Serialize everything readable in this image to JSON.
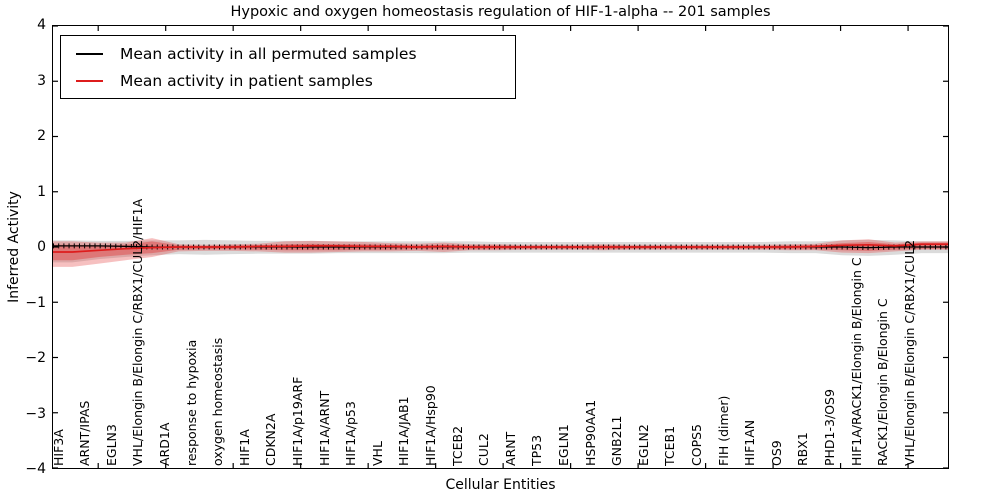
{
  "figure": {
    "title": "Hypoxic and oxygen homeostasis regulation of HIF-1-alpha -- 201 samples",
    "xlabel": "Cellular Entities",
    "ylabel": "Inferred Activity"
  },
  "legend": {
    "items": [
      {
        "label": "Mean activity in all permuted samples",
        "color": "#000000"
      },
      {
        "label": "Mean activity in patient samples",
        "color": "#dd1c1c"
      }
    ]
  },
  "chart_data": {
    "type": "line",
    "title": "Hypoxic and oxygen homeostasis regulation of HIF-1-alpha -- 201 samples",
    "xlabel": "Cellular Entities",
    "ylabel": "Inferred Activity",
    "ylim": [
      -4,
      4
    ],
    "grid": false,
    "legend_position": "upper left",
    "y_ticks": [
      4,
      3,
      2,
      1,
      0,
      -1,
      -2,
      -3,
      -4
    ],
    "y_tick_labels": [
      "4",
      "3",
      "2",
      "1",
      "0",
      "−1",
      "−2",
      "−3",
      "−4"
    ],
    "categories": [
      "HIF3A",
      "ARNT/IPAS",
      "EGLN3",
      "VHL/Elongin B/Elongin C/RBX1/CUL2/HIF1A",
      "ARD1A",
      "response to hypoxia",
      "oxygen homeostasis",
      "HIF1A",
      "CDKN2A",
      "HIF1A/p19ARF",
      "HIF1A/ARNT",
      "HIF1A/p53",
      "VHL",
      "HIF1A/JAB1",
      "HIF1A/Hsp90",
      "TCEB2",
      "CUL2",
      "ARNT",
      "TP53",
      "EGLN1",
      "HSP90AA1",
      "GNB2L1",
      "EGLN2",
      "TCEB1",
      "COPS5",
      "FIH (dimer)",
      "HIF1AN",
      "OS9",
      "RBX1",
      "PHD1-3/OS9",
      "HIF1A/RACK1/Elongin B/Elongin C",
      "RACK1/Elongin B/Elongin C",
      "VHL/Elongin B/Elongin C/RBX1/CUL2"
    ],
    "series": [
      {
        "name": "Mean activity in all permuted samples",
        "color": "#000000",
        "values": [
          0.02,
          0.02,
          0.01,
          0,
          0,
          0,
          0,
          0,
          0,
          0,
          0,
          0,
          0,
          0,
          0,
          0,
          0,
          0,
          0,
          0,
          0,
          0,
          0,
          0,
          0,
          0,
          0,
          0,
          0,
          0,
          -0.01,
          0,
          0
        ]
      },
      {
        "name": "Mean activity in patient samples",
        "color": "#dd1c1c",
        "values": [
          -0.09,
          -0.06,
          -0.03,
          -0.01,
          0,
          0,
          0,
          0.01,
          0.01,
          0.02,
          0.02,
          0.01,
          0.01,
          0,
          0.01,
          0,
          0,
          0,
          0,
          0,
          0,
          0,
          0,
          0,
          0,
          0,
          0,
          0,
          0.01,
          0.03,
          0.04,
          0.02,
          0.05
        ]
      }
    ],
    "bands": [
      {
        "name": "permuted-samples-range",
        "color": "#999999",
        "opacity": 0.35,
        "upper": [
          0.12,
          0.11,
          0.11,
          0.12,
          0.12,
          0.13,
          0.12,
          0.11,
          0.11,
          0.11,
          0.1,
          0.1,
          0.1,
          0.1,
          0.1,
          0.1,
          0.09,
          0.09,
          0.09,
          0.09,
          0.09,
          0.09,
          0.09,
          0.09,
          0.09,
          0.09,
          0.09,
          0.1,
          0.1,
          0.12,
          0.13,
          0.12,
          0.1
        ],
        "lower": [
          -0.28,
          -0.22,
          -0.18,
          -0.15,
          -0.13,
          -0.14,
          -0.13,
          -0.12,
          -0.12,
          -0.12,
          -0.11,
          -0.11,
          -0.11,
          -0.11,
          -0.11,
          -0.1,
          -0.1,
          -0.1,
          -0.1,
          -0.1,
          -0.1,
          -0.1,
          -0.1,
          -0.1,
          -0.1,
          -0.1,
          -0.1,
          -0.11,
          -0.11,
          -0.15,
          -0.16,
          -0.14,
          -0.11
        ]
      },
      {
        "name": "patient-samples-range-outer",
        "color": "#e03030",
        "opacity": 0.3,
        "upper": [
          0.1,
          0.08,
          0.08,
          0.16,
          0.05,
          0.04,
          0.05,
          0.06,
          0.1,
          0.11,
          0.1,
          0.09,
          0.07,
          0.06,
          0.08,
          0.05,
          0.05,
          0.04,
          0.04,
          0.04,
          0.05,
          0.04,
          0.04,
          0.04,
          0.04,
          0.04,
          0.04,
          0.05,
          0.06,
          0.12,
          0.14,
          0.08,
          0.1
        ],
        "lower": [
          -0.36,
          -0.3,
          -0.24,
          -0.18,
          -0.08,
          -0.07,
          -0.07,
          -0.08,
          -0.1,
          -0.1,
          -0.09,
          -0.08,
          -0.08,
          -0.07,
          -0.09,
          -0.06,
          -0.06,
          -0.05,
          -0.05,
          -0.05,
          -0.06,
          -0.05,
          -0.05,
          -0.05,
          -0.05,
          -0.05,
          -0.05,
          -0.06,
          -0.06,
          -0.1,
          -0.11,
          -0.08,
          -0.05
        ]
      },
      {
        "name": "patient-samples-range-inner",
        "color": "#e03030",
        "opacity": 0.4,
        "upper": [
          0.04,
          0.03,
          0.04,
          0.1,
          0.03,
          0.02,
          0.03,
          0.03,
          0.05,
          0.06,
          0.05,
          0.05,
          0.04,
          0.03,
          0.04,
          0.03,
          0.03,
          0.02,
          0.02,
          0.02,
          0.03,
          0.02,
          0.02,
          0.02,
          0.02,
          0.02,
          0.02,
          0.03,
          0.03,
          0.07,
          0.09,
          0.05,
          0.08
        ],
        "lower": [
          -0.24,
          -0.18,
          -0.14,
          -0.11,
          -0.05,
          -0.04,
          -0.04,
          -0.05,
          -0.06,
          -0.06,
          -0.06,
          -0.05,
          -0.05,
          -0.04,
          -0.05,
          -0.04,
          -0.04,
          -0.03,
          -0.03,
          -0.03,
          -0.04,
          -0.03,
          -0.03,
          -0.03,
          -0.03,
          -0.03,
          -0.03,
          -0.04,
          -0.04,
          -0.06,
          -0.07,
          -0.05,
          -0.03
        ]
      }
    ]
  }
}
